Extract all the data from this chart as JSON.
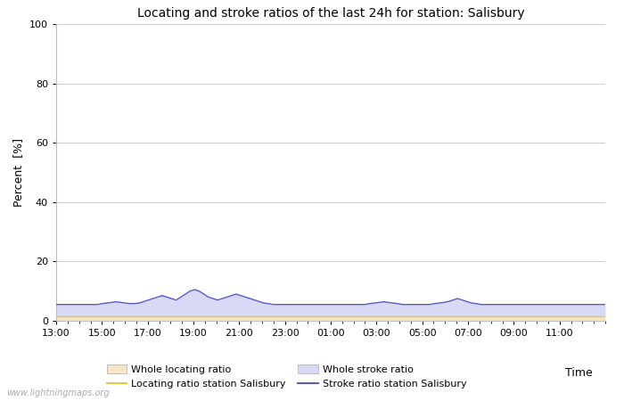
{
  "title": "Locating and stroke ratios of the last 24h for station: Salisbury",
  "xlabel": "Time",
  "ylabel": "Percent  [%]",
  "xlim": [
    0,
    24
  ],
  "ylim": [
    0,
    100
  ],
  "yticks": [
    0,
    20,
    40,
    60,
    80,
    100
  ],
  "ytick_minor": [
    10,
    30,
    50,
    70,
    90
  ],
  "xtick_labels": [
    "13:00",
    "15:00",
    "17:00",
    "19:00",
    "21:00",
    "23:00",
    "01:00",
    "03:00",
    "05:00",
    "07:00",
    "09:00",
    "11:00"
  ],
  "grid_color": "#cccccc",
  "watermark": "www.lightningmaps.org",
  "whole_locating_fill_color": "#f5e6c8",
  "whole_stroke_fill_color": "#d8daf5",
  "locating_line_color": "#e8c840",
  "stroke_line_color": "#5858c8",
  "whole_locating_values": [
    1.5,
    1.5,
    1.5,
    1.5,
    1.5,
    1.5,
    1.5,
    1.5,
    1.5,
    1.5,
    1.5,
    1.5,
    1.5,
    1.5,
    1.5,
    1.5,
    1.5,
    1.5,
    1.5,
    1.5,
    1.5,
    1.5,
    1.5,
    1.5,
    1.5,
    1.5,
    1.5,
    1.5,
    1.5,
    1.5,
    1.5,
    1.5,
    1.5,
    1.5,
    1.5,
    1.5,
    1.5,
    1.5,
    1.5,
    1.5,
    1.5,
    1.5,
    1.5,
    1.5,
    1.5,
    1.5,
    1.5,
    1.5,
    1.5,
    1.5,
    1.5,
    1.5,
    1.5,
    1.5,
    1.5,
    1.5,
    1.5,
    1.5,
    1.5,
    1.5,
    1.5,
    1.5,
    1.5,
    1.5,
    1.5,
    1.5,
    1.5,
    1.5,
    1.5,
    1.5,
    1.5,
    1.5,
    1.5,
    1.5,
    1.5,
    1.5,
    1.5,
    1.5,
    1.5,
    1.5,
    1.5,
    1.5,
    1.5,
    1.5,
    1.5,
    1.5,
    1.5,
    1.5,
    1.5,
    1.5,
    1.5,
    1.5,
    1.5,
    1.5,
    1.5,
    1.5,
    1.5,
    1.5,
    1.5,
    1.5,
    1.5,
    1.5,
    1.5,
    1.5,
    1.5,
    1.5,
    1.5,
    1.5,
    1.5,
    1.5,
    1.5,
    1.5,
    1.5,
    1.5,
    1.5,
    1.5,
    1.5,
    1.5,
    1.5,
    1.5
  ],
  "whole_stroke_values": [
    5.5,
    5.5,
    5.5,
    5.5,
    5.5,
    5.5,
    5.5,
    5.5,
    5.5,
    5.5,
    5.8,
    6.0,
    6.2,
    6.4,
    6.2,
    6.0,
    5.8,
    5.8,
    6.0,
    6.5,
    7.0,
    7.5,
    8.0,
    8.5,
    8.0,
    7.5,
    7.0,
    8.0,
    9.0,
    10.0,
    10.5,
    10.0,
    9.0,
    8.0,
    7.5,
    7.0,
    7.5,
    8.0,
    8.5,
    9.0,
    8.5,
    8.0,
    7.5,
    7.0,
    6.5,
    6.0,
    5.8,
    5.5,
    5.5,
    5.5,
    5.5,
    5.5,
    5.5,
    5.5,
    5.5,
    5.5,
    5.5,
    5.5,
    5.5,
    5.5,
    5.5,
    5.5,
    5.5,
    5.5,
    5.5,
    5.5,
    5.5,
    5.5,
    5.8,
    6.0,
    6.2,
    6.4,
    6.2,
    6.0,
    5.8,
    5.5,
    5.5,
    5.5,
    5.5,
    5.5,
    5.5,
    5.5,
    5.8,
    6.0,
    6.2,
    6.5,
    7.0,
    7.5,
    7.0,
    6.5,
    6.0,
    5.8,
    5.5,
    5.5,
    5.5,
    5.5,
    5.5,
    5.5,
    5.5,
    5.5,
    5.5,
    5.5,
    5.5,
    5.5,
    5.5,
    5.5,
    5.5,
    5.5,
    5.5,
    5.5,
    5.5,
    5.5,
    5.5,
    5.5,
    5.5,
    5.5,
    5.5,
    5.5,
    5.5,
    5.5
  ],
  "locating_line_values": [
    1.5,
    1.5,
    1.5,
    1.5,
    1.5,
    1.5,
    1.5,
    1.5,
    1.5,
    1.5,
    1.5,
    1.5,
    1.5,
    1.5,
    1.5,
    1.5,
    1.5,
    1.5,
    1.5,
    1.5,
    1.5,
    1.5,
    1.5,
    1.5,
    1.5,
    1.5,
    1.5,
    1.5,
    1.5,
    1.5,
    1.5,
    1.5,
    1.5,
    1.5,
    1.5,
    1.5,
    1.5,
    1.5,
    1.5,
    1.5,
    1.5,
    1.5,
    1.5,
    1.5,
    1.5,
    1.5,
    1.5,
    1.5,
    1.5,
    1.5,
    1.5,
    1.5,
    1.5,
    1.5,
    1.5,
    1.5,
    1.5,
    1.5,
    1.5,
    1.5,
    1.5,
    1.5,
    1.5,
    1.5,
    1.5,
    1.5,
    1.5,
    1.5,
    1.5,
    1.5,
    1.5,
    1.5,
    1.5,
    1.5,
    1.5,
    1.5,
    1.5,
    1.5,
    1.5,
    1.5,
    1.5,
    1.5,
    1.5,
    1.5,
    1.5,
    1.5,
    1.5,
    1.5,
    1.5,
    1.5,
    1.5,
    1.5,
    1.5,
    1.5,
    1.5,
    1.5,
    1.5,
    1.5,
    1.5,
    1.5,
    1.5,
    1.5,
    1.5,
    1.5,
    1.5,
    1.5,
    1.5,
    1.5,
    1.5,
    1.5,
    1.5,
    1.5,
    1.5,
    1.5,
    1.5,
    1.5,
    1.5,
    1.5,
    1.5,
    1.5
  ],
  "stroke_line_values": [
    5.5,
    5.5,
    5.5,
    5.5,
    5.5,
    5.5,
    5.5,
    5.5,
    5.5,
    5.5,
    5.8,
    6.0,
    6.2,
    6.4,
    6.2,
    6.0,
    5.8,
    5.8,
    6.0,
    6.5,
    7.0,
    7.5,
    8.0,
    8.5,
    8.0,
    7.5,
    7.0,
    8.0,
    9.0,
    10.0,
    10.5,
    10.0,
    9.0,
    8.0,
    7.5,
    7.0,
    7.5,
    8.0,
    8.5,
    9.0,
    8.5,
    8.0,
    7.5,
    7.0,
    6.5,
    6.0,
    5.8,
    5.5,
    5.5,
    5.5,
    5.5,
    5.5,
    5.5,
    5.5,
    5.5,
    5.5,
    5.5,
    5.5,
    5.5,
    5.5,
    5.5,
    5.5,
    5.5,
    5.5,
    5.5,
    5.5,
    5.5,
    5.5,
    5.8,
    6.0,
    6.2,
    6.4,
    6.2,
    6.0,
    5.8,
    5.5,
    5.5,
    5.5,
    5.5,
    5.5,
    5.5,
    5.5,
    5.8,
    6.0,
    6.2,
    6.5,
    7.0,
    7.5,
    7.0,
    6.5,
    6.0,
    5.8,
    5.5,
    5.5,
    5.5,
    5.5,
    5.5,
    5.5,
    5.5,
    5.5,
    5.5,
    5.5,
    5.5,
    5.5,
    5.5,
    5.5,
    5.5,
    5.5,
    5.5,
    5.5,
    5.5,
    5.5,
    5.5,
    5.5,
    5.5,
    5.5,
    5.5,
    5.5,
    5.5,
    5.5
  ],
  "legend_items": [
    {
      "type": "patch",
      "color": "#f5e6c8",
      "label": "Whole locating ratio"
    },
    {
      "type": "line",
      "color": "#e8c840",
      "label": "Locating ratio station Salisbury"
    },
    {
      "type": "patch",
      "color": "#d8daf5",
      "label": "Whole stroke ratio"
    },
    {
      "type": "line",
      "color": "#5858c8",
      "label": "Stroke ratio station Salisbury"
    }
  ]
}
